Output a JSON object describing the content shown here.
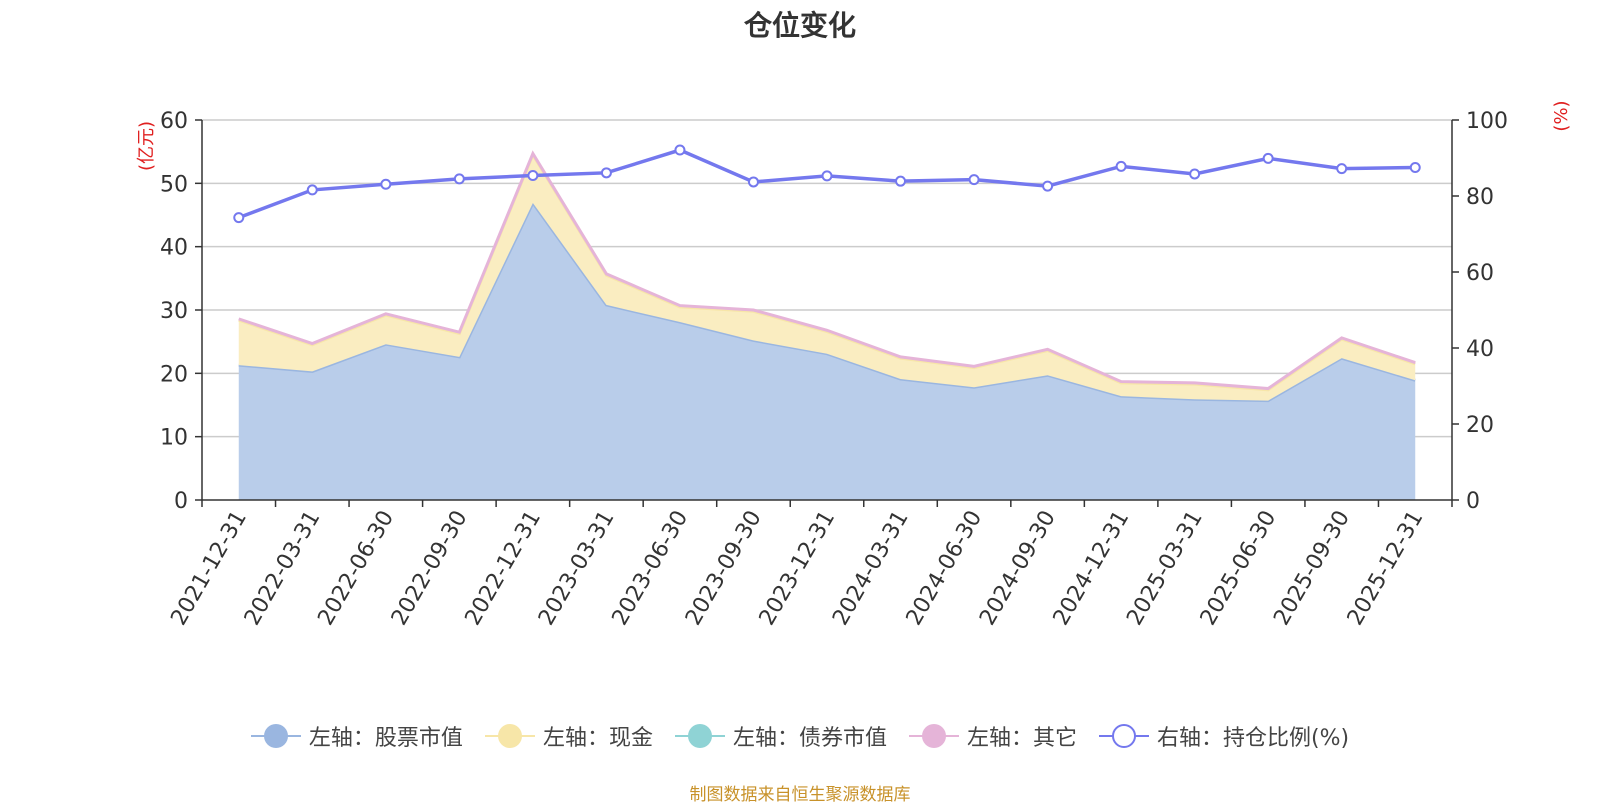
{
  "title": "仓位变化",
  "source": "制图数据来自恒生聚源数据库",
  "colors": {
    "stock": "#9ab6e0",
    "stock_fill": "#b9cdea",
    "cash": "#f7e6a8",
    "cash_fill": "#faedc1",
    "bond": "#8fd3d5",
    "other": "#e5b4d8",
    "ratio": "#7478ee"
  },
  "legend": [
    {
      "label": "左轴：股票市值",
      "key": "stock",
      "style": "filled"
    },
    {
      "label": "左轴：现金",
      "key": "cash",
      "style": "filled"
    },
    {
      "label": "左轴：债券市值",
      "key": "bond",
      "style": "filled"
    },
    {
      "label": "左轴：其它",
      "key": "other",
      "style": "filled"
    },
    {
      "label": "右轴：持仓比例(%)",
      "key": "ratio",
      "style": "hollow"
    }
  ],
  "chart_data": {
    "type": "area",
    "title": "仓位变化",
    "categories": [
      "2021-12-31",
      "2022-03-31",
      "2022-06-30",
      "2022-09-30",
      "2022-12-31",
      "2023-03-31",
      "2023-06-30",
      "2023-09-30",
      "2023-12-31",
      "2024-03-31",
      "2024-06-30",
      "2024-09-30",
      "2024-12-31",
      "2025-03-31",
      "2025-06-30",
      "2025-09-30",
      "2025-12-31"
    ],
    "y_left": {
      "label": "(亿元)",
      "ylim": [
        0,
        60
      ],
      "ticks": [
        0,
        10,
        20,
        30,
        40,
        50,
        60
      ]
    },
    "y_right": {
      "label": "(%)",
      "ylim": [
        0,
        100
      ],
      "ticks": [
        0,
        20,
        40,
        60,
        80,
        100
      ]
    },
    "grid": true,
    "legend_position": "bottom",
    "series": [
      {
        "name": "左轴：股票市值",
        "axis": "left",
        "type": "area",
        "stacked": true,
        "values": [
          21.3,
          20.3,
          24.6,
          22.6,
          46.9,
          30.8,
          28.1,
          25.2,
          23.1,
          19.1,
          17.8,
          19.7,
          16.4,
          15.9,
          15.7,
          22.4,
          18.9
        ]
      },
      {
        "name": "左轴：现金",
        "axis": "left",
        "type": "area",
        "stacked": true,
        "values": [
          7.1,
          4.2,
          4.6,
          3.7,
          7.6,
          4.7,
          2.4,
          4.6,
          3.5,
          3.3,
          3.1,
          3.9,
          2.1,
          2.4,
          1.7,
          3.0,
          2.6
        ]
      },
      {
        "name": "左轴：债券市值",
        "axis": "left",
        "type": "area",
        "stacked": true,
        "values": [
          0,
          0,
          0,
          0,
          0,
          0,
          0,
          0,
          0,
          0,
          0,
          0,
          0,
          0,
          0,
          0,
          0
        ]
      },
      {
        "name": "左轴：其它",
        "axis": "left",
        "type": "area",
        "stacked": true,
        "values": [
          0.2,
          0.2,
          0.2,
          0.2,
          0.2,
          0.2,
          0.2,
          0.2,
          0.2,
          0.2,
          0.2,
          0.2,
          0.2,
          0.2,
          0.2,
          0.2,
          0.2
        ]
      },
      {
        "name": "右轴：持仓比例(%)",
        "axis": "right",
        "type": "line",
        "values": [
          74.3,
          81.6,
          83.1,
          84.5,
          85.4,
          86.1,
          92.1,
          83.7,
          85.3,
          83.9,
          84.3,
          82.6,
          87.8,
          85.8,
          89.9,
          87.2,
          87.5
        ]
      }
    ]
  }
}
